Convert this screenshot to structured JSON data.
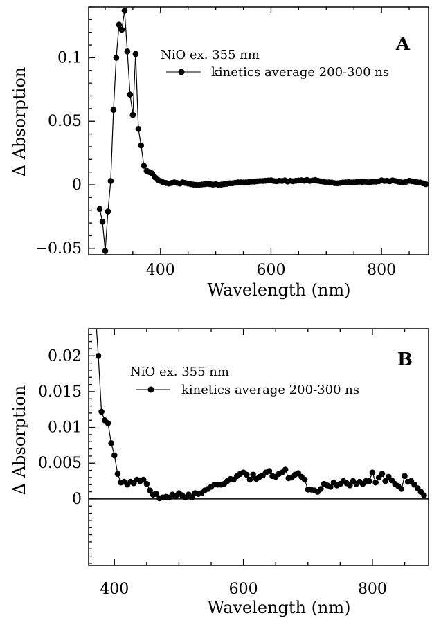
{
  "chart_data": [
    {
      "type": "line",
      "panel_label": "A",
      "xlabel": "Wavelength (nm)",
      "ylabel": "Δ Absorption",
      "xlim": [
        270,
        885
      ],
      "ylim": [
        -0.055,
        0.14
      ],
      "xticks": [
        400,
        600,
        800
      ],
      "xtick_labels": [
        "400",
        "600",
        "800"
      ],
      "yticks": [
        -0.05,
        0,
        0.05,
        0.1
      ],
      "ytick_labels": [
        "−0.05",
        "0",
        "0.05",
        "0.1"
      ],
      "grid": false,
      "legend_position": "top-right",
      "legend_title": "NiO ex. 355 nm",
      "series": [
        {
          "name": "kinetics average 200-300 ns",
          "x": [
            290,
            295,
            300,
            305,
            310,
            315,
            320,
            325,
            330,
            335,
            340,
            345,
            350,
            355,
            360,
            365,
            370,
            375,
            380,
            385,
            390,
            395,
            400,
            405,
            410,
            415,
            420,
            425,
            430,
            435,
            440,
            445,
            450,
            455,
            460,
            465,
            470,
            475,
            480,
            485,
            490,
            495,
            500,
            505,
            510,
            515,
            520,
            525,
            530,
            535,
            540,
            545,
            550,
            555,
            560,
            565,
            570,
            575,
            580,
            585,
            590,
            595,
            600,
            605,
            610,
            615,
            620,
            625,
            630,
            635,
            640,
            645,
            650,
            655,
            660,
            665,
            670,
            675,
            680,
            685,
            690,
            695,
            700,
            705,
            710,
            715,
            720,
            725,
            730,
            735,
            740,
            745,
            750,
            755,
            760,
            765,
            770,
            775,
            780,
            785,
            790,
            795,
            800,
            805,
            810,
            815,
            820,
            825,
            830,
            835,
            840,
            845,
            850,
            855,
            860,
            865,
            870,
            875,
            880
          ],
          "y": [
            -0.019,
            -0.029,
            -0.052,
            -0.021,
            0.003,
            0.059,
            0.1,
            0.126,
            0.122,
            0.137,
            0.105,
            0.071,
            0.055,
            0.103,
            0.044,
            0.031,
            0.015,
            0.011,
            0.01,
            0.009,
            0.006,
            0.004,
            0.003,
            0.002,
            0.0015,
            0.001,
            0.0015,
            0.002,
            0.0015,
            0.001,
            0.002,
            0.0015,
            0.001,
            0.0005,
            0.0002,
            0.0,
            0.0,
            0.0003,
            0.0005,
            0.0008,
            0.0005,
            0.0002,
            0.0005,
            0.0,
            0.0002,
            0.0005,
            0.0008,
            0.0012,
            0.0012,
            0.0016,
            0.002,
            0.002,
            0.0018,
            0.002,
            0.0022,
            0.0025,
            0.0025,
            0.0028,
            0.003,
            0.003,
            0.0032,
            0.0034,
            0.0036,
            0.003,
            0.0028,
            0.0032,
            0.003,
            0.0035,
            0.0026,
            0.0032,
            0.0028,
            0.0032,
            0.0034,
            0.0036,
            0.0032,
            0.0038,
            0.003,
            0.0034,
            0.0038,
            0.0032,
            0.0028,
            0.0025,
            0.0018,
            0.002,
            0.0018,
            0.0013,
            0.0012,
            0.0015,
            0.0018,
            0.002,
            0.0022,
            0.0018,
            0.002,
            0.0022,
            0.0025,
            0.0022,
            0.0025,
            0.002,
            0.0022,
            0.0025,
            0.0025,
            0.0028,
            0.0035,
            0.003,
            0.0032,
            0.0028,
            0.0035,
            0.003,
            0.0025,
            0.002,
            0.0018,
            0.0025,
            0.0032,
            0.0028,
            0.0025,
            0.002,
            0.0018,
            0.0012,
            0.0005
          ]
        }
      ]
    },
    {
      "type": "line",
      "panel_label": "B",
      "xlabel": "Wavelength (nm)",
      "ylabel": "Δ Absorption",
      "xlim": [
        360,
        887
      ],
      "ylim": [
        -0.0093,
        0.0238
      ],
      "xticks": [
        400,
        600,
        800
      ],
      "xtick_labels": [
        "400",
        "600",
        "800"
      ],
      "yticks": [
        0,
        0.005,
        0.01,
        0.015,
        0.02
      ],
      "ytick_labels": [
        "0",
        "0.005",
        "0.01",
        "0.015",
        "0.02"
      ],
      "zero_line": true,
      "grid": false,
      "legend_position": "top-right",
      "legend_title": "NiO ex. 355 nm",
      "series": [
        {
          "name": "kinetics average 200-300 ns",
          "x": [
            370,
            375,
            380,
            385,
            390,
            395,
            400,
            405,
            410,
            415,
            420,
            425,
            430,
            435,
            440,
            445,
            450,
            455,
            460,
            465,
            470,
            475,
            480,
            485,
            490,
            495,
            500,
            505,
            510,
            515,
            520,
            525,
            530,
            535,
            540,
            545,
            550,
            555,
            560,
            565,
            570,
            575,
            580,
            585,
            590,
            595,
            600,
            605,
            610,
            615,
            620,
            625,
            630,
            635,
            640,
            645,
            650,
            655,
            660,
            665,
            670,
            675,
            680,
            685,
            690,
            695,
            700,
            705,
            710,
            715,
            720,
            725,
            730,
            735,
            740,
            745,
            750,
            755,
            760,
            765,
            770,
            775,
            780,
            785,
            790,
            795,
            800,
            805,
            810,
            815,
            820,
            825,
            830,
            835,
            840,
            845,
            850,
            855,
            860,
            865,
            870,
            875,
            880
          ],
          "y": [
            0.0268,
            0.02,
            0.0122,
            0.011,
            0.0106,
            0.0078,
            0.0061,
            0.0035,
            0.0023,
            0.0024,
            0.002,
            0.0024,
            0.0022,
            0.0027,
            0.0025,
            0.0027,
            0.0021,
            0.0012,
            0.0006,
            0.0007,
            0.0001,
            0.0002,
            0.0003,
            0.0002,
            0.0006,
            0.0004,
            0.0008,
            0.0005,
            0.0002,
            0.0006,
            0.0002,
            0.0008,
            0.0007,
            0.0008,
            0.0012,
            0.0014,
            0.0017,
            0.002,
            0.002,
            0.002,
            0.0021,
            0.0025,
            0.0028,
            0.0027,
            0.0032,
            0.0035,
            0.0037,
            0.0034,
            0.0027,
            0.0034,
            0.0028,
            0.0031,
            0.0033,
            0.0037,
            0.0039,
            0.0032,
            0.0031,
            0.0035,
            0.0037,
            0.0041,
            0.0029,
            0.003,
            0.0034,
            0.0036,
            0.0031,
            0.0027,
            0.0013,
            0.0013,
            0.0012,
            0.001,
            0.0014,
            0.0021,
            0.0019,
            0.0017,
            0.0023,
            0.0019,
            0.0021,
            0.0025,
            0.0022,
            0.0019,
            0.0025,
            0.0021,
            0.0024,
            0.0021,
            0.0025,
            0.0025,
            0.0037,
            0.0023,
            0.003,
            0.0035,
            0.0025,
            0.0031,
            0.0026,
            0.0021,
            0.0018,
            0.0014,
            0.0032,
            0.0024,
            0.0025,
            0.002,
            0.0015,
            0.001,
            0.0005
          ]
        }
      ]
    }
  ]
}
